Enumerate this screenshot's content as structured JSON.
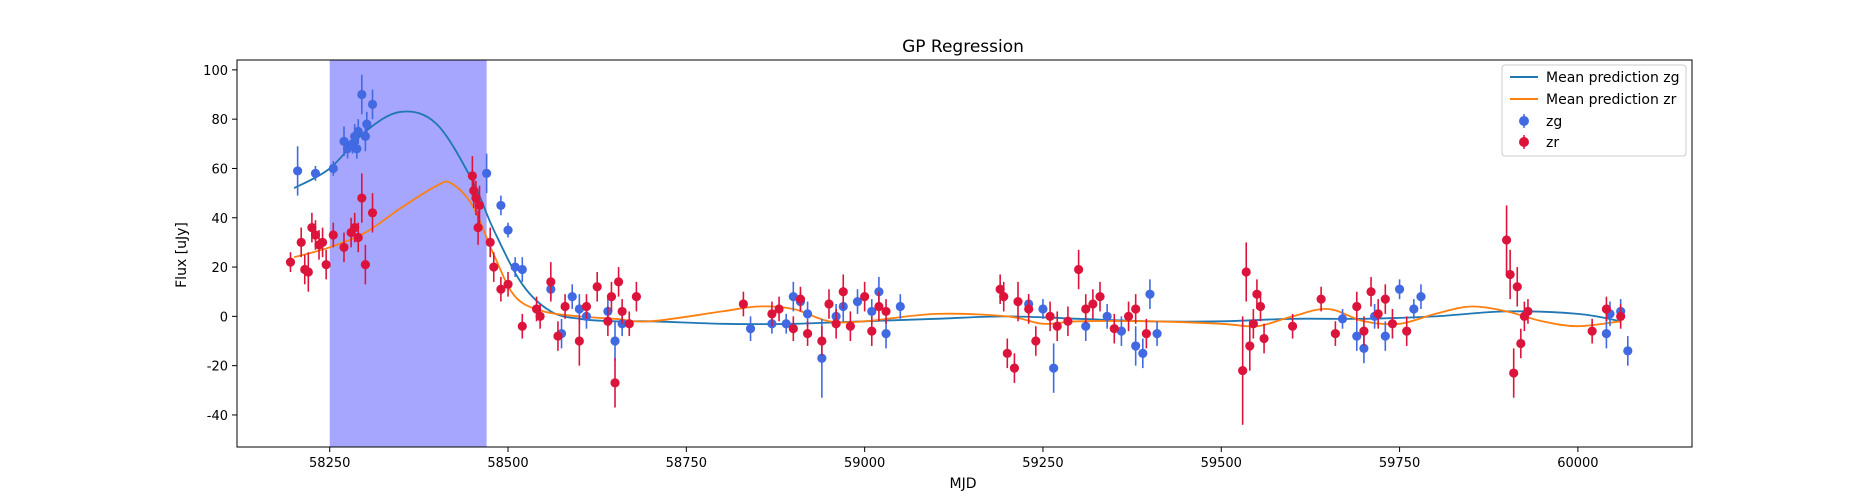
{
  "chart_data": {
    "type": "scatter",
    "title": "GP Regression",
    "xlabel": "MJD",
    "ylabel": "Flux [uJy]",
    "xlim": [
      58120,
      60160
    ],
    "ylim": [
      -53,
      104
    ],
    "xticks": [
      58250,
      58500,
      58750,
      59000,
      59250,
      59500,
      59750,
      60000
    ],
    "yticks": [
      -40,
      -20,
      0,
      20,
      40,
      60,
      80,
      100
    ],
    "shaded_region": {
      "x": [
        58250,
        58470
      ],
      "color": "#a6a6ff"
    },
    "legend_position": "top-right",
    "colors": {
      "zg_line": "#1f77b4",
      "zr_line": "#ff7f0e",
      "zg_points": "#4169e1",
      "zr_points": "#dc143c"
    },
    "series": [
      {
        "name": "Mean prediction zg",
        "kind": "line",
        "x": [
          58200,
          58250,
          58300,
          58350,
          58400,
          58450,
          58480,
          58520,
          58560,
          58600,
          58650,
          58700,
          58800,
          58900,
          59000,
          59100,
          59200,
          59300,
          59400,
          59500,
          59600,
          59700,
          59800,
          59900,
          60000,
          60060
        ],
        "y": [
          52,
          60,
          75,
          83,
          78,
          55,
          35,
          13,
          2,
          -1,
          -2,
          -2,
          -3,
          -3,
          -2,
          -1,
          0,
          -1,
          -2,
          -2,
          -1,
          -1,
          0,
          2,
          1,
          -2
        ]
      },
      {
        "name": "Mean prediction zr",
        "kind": "line",
        "x": [
          58200,
          58250,
          58300,
          58350,
          58400,
          58420,
          58450,
          58480,
          58510,
          58550,
          58600,
          58650,
          58700,
          58800,
          58850,
          58900,
          58950,
          59000,
          59100,
          59200,
          59250,
          59300,
          59400,
          59500,
          59550,
          59600,
          59650,
          59700,
          59750,
          59800,
          59850,
          59900,
          59950,
          60000,
          60060
        ],
        "y": [
          24,
          28,
          34,
          44,
          53,
          54,
          45,
          25,
          8,
          2,
          0,
          -1,
          -2,
          2,
          4,
          3,
          -2,
          -2,
          1,
          0,
          -3,
          -2,
          -2,
          -3,
          -4,
          0,
          3,
          -2,
          -3,
          1,
          4,
          2,
          -2,
          -4,
          -2
        ]
      },
      {
        "name": "zg",
        "kind": "errorbar",
        "points": [
          [
            58205,
            59,
            10
          ],
          [
            58230,
            58,
            3
          ],
          [
            58255,
            60,
            3
          ],
          [
            58270,
            71,
            6
          ],
          [
            58275,
            68,
            4
          ],
          [
            58282,
            70,
            4
          ],
          [
            58285,
            73,
            5
          ],
          [
            58290,
            75,
            5
          ],
          [
            58295,
            90,
            8
          ],
          [
            58300,
            73,
            6
          ],
          [
            58302,
            78,
            5
          ],
          [
            58310,
            86,
            6
          ],
          [
            58288,
            68,
            4
          ],
          [
            58470,
            58,
            8
          ],
          [
            58490,
            45,
            4
          ],
          [
            58500,
            35,
            3
          ],
          [
            58510,
            20,
            4
          ],
          [
            58520,
            19,
            5
          ],
          [
            58560,
            11,
            4
          ],
          [
            58575,
            -7,
            6
          ],
          [
            58590,
            8,
            5
          ],
          [
            58600,
            3,
            6
          ],
          [
            58610,
            0,
            5
          ],
          [
            58640,
            2,
            6
          ],
          [
            58650,
            -10,
            8
          ],
          [
            58660,
            -3,
            5
          ],
          [
            58840,
            -5,
            5
          ],
          [
            58870,
            -3,
            4
          ],
          [
            58890,
            -3,
            4
          ],
          [
            58900,
            8,
            6
          ],
          [
            58910,
            6,
            4
          ],
          [
            58920,
            1,
            5
          ],
          [
            58940,
            -17,
            16
          ],
          [
            58960,
            0,
            5
          ],
          [
            58970,
            4,
            6
          ],
          [
            58990,
            6,
            5
          ],
          [
            59010,
            2,
            5
          ],
          [
            59020,
            10,
            6
          ],
          [
            59030,
            -7,
            6
          ],
          [
            59050,
            4,
            5
          ],
          [
            59250,
            3,
            4
          ],
          [
            59230,
            5,
            4
          ],
          [
            59265,
            -21,
            10
          ],
          [
            59310,
            -4,
            6
          ],
          [
            59340,
            0,
            5
          ],
          [
            59360,
            -6,
            6
          ],
          [
            59380,
            -12,
            8
          ],
          [
            59390,
            -15,
            6
          ],
          [
            59400,
            9,
            6
          ],
          [
            59410,
            -7,
            5
          ],
          [
            59670,
            -1,
            4
          ],
          [
            59690,
            -8,
            6
          ],
          [
            59700,
            -13,
            6
          ],
          [
            59715,
            0,
            5
          ],
          [
            59730,
            -8,
            6
          ],
          [
            59750,
            11,
            4
          ],
          [
            59770,
            3,
            4
          ],
          [
            59780,
            8,
            5
          ],
          [
            60040,
            -7,
            6
          ],
          [
            60045,
            1,
            5
          ],
          [
            60060,
            2,
            5
          ],
          [
            60070,
            -14,
            6
          ]
        ]
      },
      {
        "name": "zr",
        "kind": "errorbar",
        "points": [
          [
            58195,
            22,
            4
          ],
          [
            58210,
            30,
            6
          ],
          [
            58215,
            19,
            6
          ],
          [
            58220,
            18,
            8
          ],
          [
            58225,
            36,
            6
          ],
          [
            58230,
            33,
            6
          ],
          [
            58235,
            29,
            6
          ],
          [
            58240,
            30,
            6
          ],
          [
            58245,
            21,
            6
          ],
          [
            58255,
            33,
            5
          ],
          [
            58270,
            28,
            6
          ],
          [
            58280,
            34,
            6
          ],
          [
            58285,
            36,
            6
          ],
          [
            58290,
            32,
            6
          ],
          [
            58295,
            48,
            10
          ],
          [
            58300,
            21,
            8
          ],
          [
            58310,
            42,
            8
          ],
          [
            58450,
            57,
            8
          ],
          [
            58452,
            51,
            7
          ],
          [
            58455,
            48,
            7
          ],
          [
            58458,
            36,
            7
          ],
          [
            58460,
            45,
            8
          ],
          [
            58475,
            30,
            6
          ],
          [
            58480,
            20,
            6
          ],
          [
            58490,
            11,
            5
          ],
          [
            58500,
            13,
            5
          ],
          [
            58520,
            -4,
            5
          ],
          [
            58540,
            3,
            5
          ],
          [
            58545,
            0,
            5
          ],
          [
            58560,
            14,
            8
          ],
          [
            58570,
            -8,
            6
          ],
          [
            58580,
            4,
            5
          ],
          [
            58600,
            -10,
            10
          ],
          [
            58610,
            4,
            5
          ],
          [
            58625,
            12,
            6
          ],
          [
            58640,
            -2,
            6
          ],
          [
            58645,
            8,
            6
          ],
          [
            58650,
            -27,
            10
          ],
          [
            58655,
            14,
            6
          ],
          [
            58660,
            2,
            5
          ],
          [
            58670,
            -3,
            5
          ],
          [
            58680,
            8,
            6
          ],
          [
            58830,
            5,
            5
          ],
          [
            58870,
            1,
            5
          ],
          [
            58880,
            3,
            5
          ],
          [
            58900,
            -5,
            5
          ],
          [
            58910,
            7,
            5
          ],
          [
            58920,
            -7,
            5
          ],
          [
            58940,
            -10,
            6
          ],
          [
            58950,
            5,
            6
          ],
          [
            58960,
            -3,
            6
          ],
          [
            58970,
            10,
            7
          ],
          [
            58980,
            -4,
            6
          ],
          [
            59000,
            8,
            6
          ],
          [
            59010,
            -6,
            6
          ],
          [
            59020,
            4,
            6
          ],
          [
            59030,
            2,
            5
          ],
          [
            59190,
            11,
            6
          ],
          [
            59195,
            8,
            6
          ],
          [
            59200,
            -15,
            6
          ],
          [
            59210,
            -21,
            6
          ],
          [
            59215,
            6,
            8
          ],
          [
            59230,
            3,
            6
          ],
          [
            59240,
            -10,
            6
          ],
          [
            59260,
            0,
            6
          ],
          [
            59270,
            -4,
            6
          ],
          [
            59285,
            -2,
            6
          ],
          [
            59300,
            19,
            8
          ],
          [
            59310,
            3,
            6
          ],
          [
            59320,
            5,
            6
          ],
          [
            59330,
            8,
            6
          ],
          [
            59350,
            -5,
            6
          ],
          [
            59370,
            0,
            6
          ],
          [
            59380,
            3,
            6
          ],
          [
            59395,
            -7,
            6
          ],
          [
            59530,
            -22,
            22
          ],
          [
            59535,
            18,
            12
          ],
          [
            59540,
            -12,
            10
          ],
          [
            59545,
            -3,
            6
          ],
          [
            59550,
            9,
            6
          ],
          [
            59555,
            4,
            6
          ],
          [
            59560,
            -9,
            6
          ],
          [
            59600,
            -4,
            5
          ],
          [
            59640,
            7,
            5
          ],
          [
            59660,
            -7,
            5
          ],
          [
            59690,
            4,
            6
          ],
          [
            59700,
            -6,
            6
          ],
          [
            59710,
            10,
            6
          ],
          [
            59720,
            1,
            6
          ],
          [
            59730,
            7,
            6
          ],
          [
            59740,
            -3,
            6
          ],
          [
            59760,
            -6,
            6
          ],
          [
            59900,
            31,
            14
          ],
          [
            59905,
            17,
            10
          ],
          [
            59910,
            -23,
            10
          ],
          [
            59915,
            12,
            8
          ],
          [
            59920,
            -11,
            6
          ],
          [
            59925,
            0,
            6
          ],
          [
            59930,
            2,
            5
          ],
          [
            60020,
            -6,
            5
          ],
          [
            60040,
            3,
            5
          ],
          [
            60060,
            0,
            5
          ]
        ]
      }
    ]
  }
}
